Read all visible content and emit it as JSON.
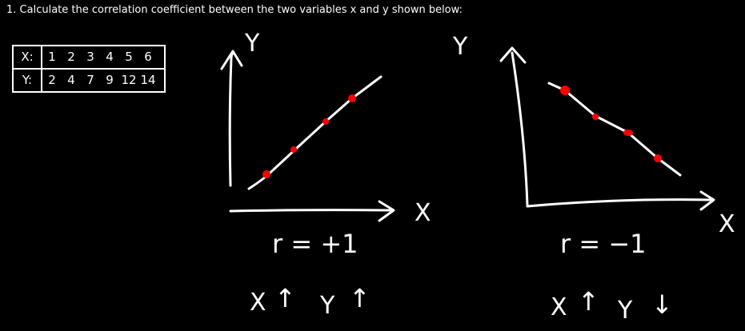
{
  "question": "1.  Calculate the correlation coefficient between the two variables x and y shown below:",
  "table": {
    "x_label": "X:",
    "y_label": "Y:",
    "x_values": [
      "1",
      "2",
      "3",
      "4",
      "5",
      "6"
    ],
    "y_values": [
      "2",
      "4",
      "7",
      "9",
      "12",
      "14"
    ]
  },
  "left_graph": {
    "y_axis_label": "Y",
    "x_axis_label": "X",
    "r_label": "r = +1",
    "trend_label_x": "X",
    "trend_arrow_x": "↑",
    "trend_label_y": "Y",
    "trend_arrow_y": "↑"
  },
  "right_graph": {
    "y_axis_label": "Y",
    "x_axis_label": "X",
    "r_label": "r = −1",
    "trend_label_x": "X",
    "trend_arrow_x": "↑",
    "trend_label_y": "Y",
    "trend_arrow_y": "↓"
  },
  "colors": {
    "background": "#000000",
    "ink": "#ffffff",
    "points": "#ff0000"
  }
}
